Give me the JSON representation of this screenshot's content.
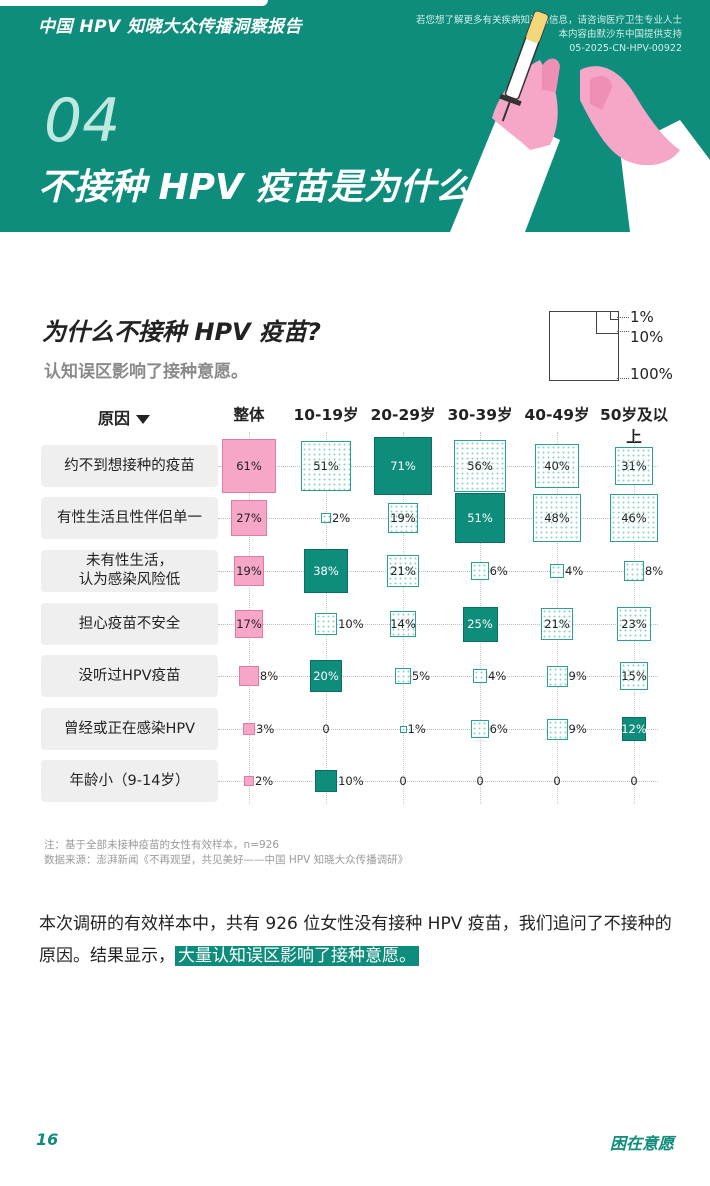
{
  "header": {
    "report_title": "中国 HPV 知晓大众传播洞察报告",
    "disclaimer_line1": "若您想了解更多有关疾病知识的信息，请咨询医疗卫生专业人士",
    "disclaimer_line2": "本内容由默沙东中国提供支持",
    "disclaimer_line3": "05-2025-CN-HPV-00922",
    "section_number": "04",
    "section_title": "不接种 HPV 疫苗是为什么?"
  },
  "chart": {
    "title": "为什么不接种 HPV 疫苗?",
    "subtitle": "认知误区影响了接种意愿。",
    "legend": [
      "1%",
      "10%",
      "100%"
    ],
    "reason_header": "原因"
  },
  "chart_data": {
    "type": "table",
    "columns": [
      "整体",
      "10-19岁",
      "20-29岁",
      "30-39岁",
      "40-49岁",
      "50岁及以上"
    ],
    "rows": [
      {
        "reason": "约不到想接种的疫苗",
        "labels": [
          "61%",
          "51%",
          "71%",
          "56%",
          "40%",
          "31%"
        ],
        "values": [
          61,
          51,
          71,
          56,
          40,
          31
        ]
      },
      {
        "reason": "有性生活且性伴侣单一",
        "labels": [
          "27%",
          "2%",
          "19%",
          "51%",
          "48%",
          "46%"
        ],
        "values": [
          27,
          2,
          19,
          51,
          48,
          46
        ]
      },
      {
        "reason": "未有性生活，\n认为感染风险低",
        "labels": [
          "19%",
          "38%",
          "21%",
          "6%",
          "4%",
          "8%"
        ],
        "values": [
          19,
          38,
          21,
          6,
          4,
          8
        ]
      },
      {
        "reason": "担心疫苗不安全",
        "labels": [
          "17%",
          "10%",
          "14%",
          "25%",
          "21%",
          "23%"
        ],
        "values": [
          17,
          10,
          14,
          25,
          21,
          23
        ]
      },
      {
        "reason": "没听过HPV疫苗",
        "labels": [
          "8%",
          "20%",
          "5%",
          "4%",
          "9%",
          "15%"
        ],
        "values": [
          8,
          20,
          5,
          4,
          9,
          15
        ]
      },
      {
        "reason": "曾经或正在感染HPV",
        "labels": [
          "3%",
          "0",
          "1%",
          "6%",
          "9%",
          "12%"
        ],
        "values": [
          3,
          0,
          1,
          6,
          9,
          12
        ]
      },
      {
        "reason": "年龄小（9-14岁）",
        "labels": [
          "2%",
          "10%",
          "0",
          "0",
          "0",
          "0"
        ],
        "values": [
          2,
          10,
          0,
          0,
          0,
          0
        ]
      }
    ],
    "colors": {
      "overall": "#f6a7c7",
      "highest": "#0e8c7c",
      "other": "#dff3ef"
    }
  },
  "notes": {
    "line1": "注：基于全部未接种疫苗的女性有效样本，n=926",
    "line2": "数据来源：澎湃新闻《不再观望，共见美好——中国 HPV 知晓大众传播调研》"
  },
  "body": {
    "text_part1": "本次调研的有效样本中，共有 926 位女性没有接种 HPV 疫苗，我们追问了不接种的原因。结果显示，",
    "highlight": "大量认知误区影响了接种意愿。"
  },
  "footer": {
    "page_number": "16",
    "section_name": "困在意愿"
  }
}
